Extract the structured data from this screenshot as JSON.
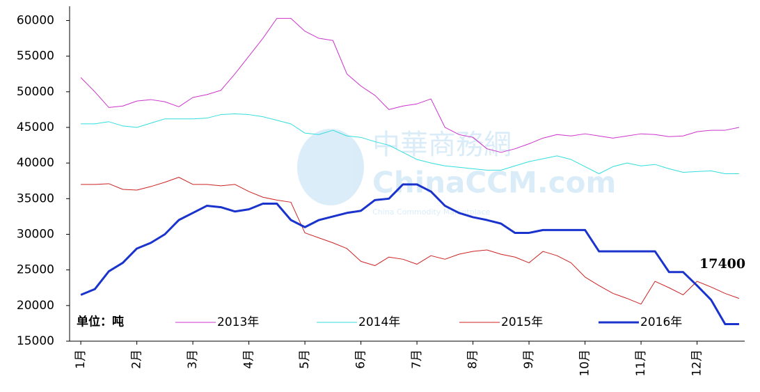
{
  "chart_data": {
    "type": "line",
    "unit_label": "单位：吨",
    "annotation": "17400",
    "watermark": [
      "中華商務網",
      "ChinaCCM.com",
      "China Commodity Marketplace"
    ],
    "x": [
      1,
      1.25,
      1.5,
      1.75,
      2,
      2.25,
      2.5,
      2.75,
      3,
      3.25,
      3.5,
      3.75,
      4,
      4.25,
      4.5,
      4.75,
      5,
      5.25,
      5.5,
      5.75,
      6,
      6.25,
      6.5,
      6.75,
      7,
      7.25,
      7.5,
      7.75,
      8,
      8.25,
      8.5,
      8.75,
      9,
      9.25,
      9.5,
      9.75,
      10,
      10.25,
      10.5,
      10.75,
      11,
      11.25,
      11.5,
      11.75,
      12,
      12.25,
      12.5,
      12.75
    ],
    "xlim": [
      0.8,
      12.85
    ],
    "xticks": [
      {
        "value": 1,
        "label": "1月"
      },
      {
        "value": 2,
        "label": "2月"
      },
      {
        "value": 3,
        "label": "3月"
      },
      {
        "value": 4,
        "label": "4月"
      },
      {
        "value": 5,
        "label": "5月"
      },
      {
        "value": 6,
        "label": "6月"
      },
      {
        "value": 7,
        "label": "7月"
      },
      {
        "value": 8,
        "label": "8月"
      },
      {
        "value": 9,
        "label": "9月"
      },
      {
        "value": 10,
        "label": "10月"
      },
      {
        "value": 11,
        "label": "11月"
      },
      {
        "value": 12,
        "label": "12月"
      }
    ],
    "ylim": [
      15000,
      62000
    ],
    "yticks": [
      15000,
      20000,
      25000,
      30000,
      35000,
      40000,
      45000,
      50000,
      55000,
      60000
    ],
    "grid": false,
    "series": [
      {
        "name": "2013年",
        "color": "#cc33cc",
        "width": 1,
        "values": [
          52000,
          50000,
          47800,
          48000,
          48700,
          48900,
          48600,
          47900,
          49200,
          49600,
          50200,
          52500,
          55000,
          57500,
          60300,
          60300,
          58500,
          57500,
          57200,
          52500,
          50800,
          49500,
          47500,
          48000,
          48300,
          49000,
          45000,
          44000,
          43600,
          42000,
          41500,
          42000,
          42700,
          43500,
          44000,
          43800,
          44100,
          43800,
          43500,
          43800,
          44100,
          44000,
          43700,
          43800,
          44400,
          44600,
          44600,
          45000
        ]
      },
      {
        "name": "2014年",
        "color": "#33dddd",
        "width": 1,
        "values": [
          45500,
          45500,
          45800,
          45200,
          45000,
          45600,
          46200,
          46200,
          46200,
          46300,
          46800,
          46900,
          46800,
          46500,
          46000,
          45500,
          44200,
          44000,
          44600,
          43800,
          43600,
          43000,
          42500,
          41500,
          40500,
          40000,
          39600,
          39400,
          39200,
          39000,
          39000,
          39600,
          40200,
          40600,
          41000,
          40500,
          39500,
          38500,
          39500,
          40000,
          39600,
          39800,
          39200,
          38700,
          38800,
          38900,
          38500,
          38500
        ]
      },
      {
        "name": "2015年",
        "color": "#cc2222",
        "width": 1,
        "values": [
          37000,
          37000,
          37100,
          36300,
          36200,
          36700,
          37300,
          38000,
          37000,
          37000,
          36800,
          37000,
          36000,
          35200,
          34800,
          34500,
          30200,
          29500,
          28800,
          28000,
          26200,
          25600,
          26800,
          26500,
          25800,
          27000,
          26500,
          27200,
          27600,
          27800,
          27200,
          26800,
          26000,
          27600,
          27000,
          26000,
          24000,
          22800,
          21700,
          21000,
          20200,
          23400,
          22500,
          21500,
          23400,
          22600,
          21700,
          21000
        ]
      },
      {
        "name": "2016年",
        "color": "#1a33cc",
        "width": 3,
        "values": [
          21500,
          22300,
          24800,
          26000,
          28000,
          28800,
          30000,
          32000,
          33000,
          34000,
          33800,
          33200,
          33500,
          34300,
          34300,
          32000,
          31000,
          32000,
          32500,
          33000,
          33300,
          34800,
          35000,
          37000,
          37000,
          36000,
          34000,
          33000,
          32400,
          32000,
          31500,
          30200,
          30200,
          30600,
          30600,
          30600,
          30600,
          27600,
          27600,
          27600,
          27600,
          27600,
          24700,
          24700,
          22800,
          20800,
          17400,
          17400
        ]
      }
    ]
  }
}
